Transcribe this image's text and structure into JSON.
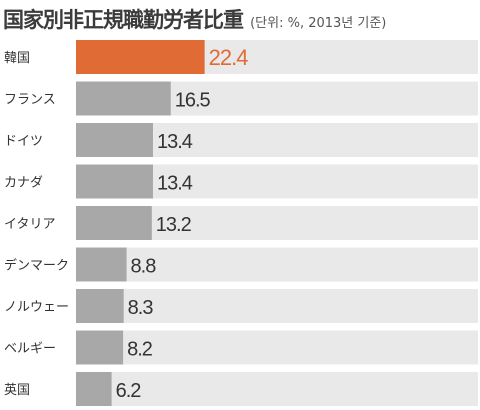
{
  "colors": {
    "highlight_bar": "#e06b35",
    "bar": "#a8a8a8",
    "row_background": "#e9e9e9",
    "highlight_text": "#e06b35",
    "text": "#333333"
  },
  "chart_data": {
    "type": "bar",
    "orientation": "horizontal",
    "title": "国家別非正規職勤労者比重",
    "subtitle": "(단위: %, 2013년 기준)",
    "categories": [
      "韓国",
      "フランス",
      "ドイツ",
      "カナダ",
      "イタリア",
      "デンマーク",
      "ノルウェー",
      "ベルギー",
      "英国"
    ],
    "values": [
      22.4,
      16.5,
      13.4,
      13.4,
      13.2,
      8.8,
      8.3,
      8.2,
      6.2
    ],
    "value_labels": [
      "22.4",
      "16.5",
      "13.4",
      "13.4",
      "13.2",
      "8.8",
      "8.3",
      "8.2",
      "6.2"
    ],
    "highlight_index": 0,
    "xlim": [
      0,
      70
    ],
    "grid": false,
    "legend": "none"
  }
}
